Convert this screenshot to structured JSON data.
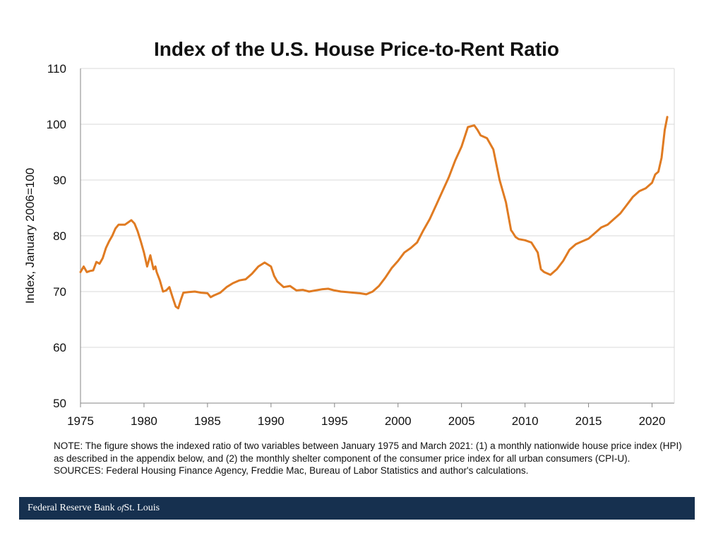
{
  "chart_data": {
    "type": "line",
    "title": "Index of the U.S. House Price-to-Rent Ratio",
    "ylabel": "Index, January 2006=100",
    "xlabel": "",
    "xlim": [
      1975,
      2021.75
    ],
    "ylim": [
      50,
      110
    ],
    "x_ticks": [
      "1975",
      "1980",
      "1985",
      "1990",
      "1995",
      "2000",
      "2005",
      "2010",
      "2015",
      "2020"
    ],
    "y_ticks": [
      "50",
      "60",
      "70",
      "80",
      "90",
      "100",
      "110"
    ],
    "grid": "horizontal",
    "line_color": "#e07b22",
    "series": [
      {
        "x": [
          1975.0,
          1975.25,
          1975.5,
          1975.75,
          1976.0,
          1976.25,
          1976.5,
          1976.75,
          1977.0,
          1977.25,
          1977.5,
          1977.75,
          1978.0,
          1978.5,
          1979.0,
          1979.25,
          1979.5,
          1979.75,
          1980.0,
          1980.25,
          1980.5,
          1980.75,
          1980.9,
          1981.0,
          1981.25,
          1981.5,
          1981.75,
          1982.0,
          1982.25,
          1982.5,
          1982.7,
          1982.9,
          1983.1,
          1983.5,
          1984.0,
          1984.5,
          1985.0,
          1985.25,
          1985.5,
          1986.0,
          1986.5,
          1987.0,
          1987.5,
          1988.0,
          1988.5,
          1989.0,
          1989.5,
          1990.0,
          1990.25,
          1990.5,
          1991.0,
          1991.5,
          1992.0,
          1992.5,
          1993.0,
          1993.5,
          1994.0,
          1994.5,
          1995.0,
          1995.5,
          1996.0,
          1996.5,
          1997.0,
          1997.5,
          1998.0,
          1998.5,
          1999.0,
          1999.5,
          2000.0,
          2000.5,
          2001.0,
          2001.5,
          2002.0,
          2002.5,
          2003.0,
          2003.5,
          2004.0,
          2004.5,
          2005.0,
          2005.5,
          2006.0,
          2006.25,
          2006.5,
          2007.0,
          2007.5,
          2008.0,
          2008.5,
          2008.9,
          2009.0,
          2009.25,
          2009.5,
          2010.0,
          2010.5,
          2011.0,
          2011.25,
          2011.5,
          2012.0,
          2012.5,
          2013.0,
          2013.5,
          2014.0,
          2014.5,
          2015.0,
          2015.5,
          2016.0,
          2016.5,
          2017.0,
          2017.5,
          2018.0,
          2018.5,
          2019.0,
          2019.5,
          2020.0,
          2020.25,
          2020.5,
          2020.75,
          2021.0,
          2021.2
        ],
        "values": [
          73.5,
          74.5,
          73.5,
          73.7,
          73.8,
          75.3,
          75.0,
          76.0,
          77.8,
          79.0,
          80.0,
          81.3,
          82.0,
          82.0,
          82.8,
          82.2,
          80.8,
          79.0,
          77.0,
          74.5,
          76.5,
          74.0,
          74.5,
          73.5,
          72.0,
          70.0,
          70.2,
          70.8,
          69.0,
          67.3,
          67.0,
          68.5,
          69.8,
          69.9,
          70.0,
          69.8,
          69.7,
          69.0,
          69.3,
          69.8,
          70.8,
          71.5,
          72.0,
          72.2,
          73.2,
          74.5,
          75.2,
          74.5,
          72.8,
          71.8,
          70.8,
          71.0,
          70.2,
          70.3,
          70.0,
          70.2,
          70.4,
          70.5,
          70.2,
          70.0,
          69.9,
          69.8,
          69.7,
          69.5,
          70.0,
          71.0,
          72.5,
          74.2,
          75.5,
          77.0,
          77.8,
          78.8,
          81.0,
          83.0,
          85.5,
          88.0,
          90.5,
          93.5,
          96.0,
          99.5,
          99.8,
          99.0,
          98.0,
          97.5,
          95.5,
          90.0,
          86.0,
          81.0,
          80.7,
          79.8,
          79.4,
          79.2,
          78.8,
          77.0,
          74.0,
          73.5,
          73.0,
          74.0,
          75.5,
          77.5,
          78.5,
          79.0,
          79.5,
          80.5,
          81.5,
          82.0,
          83.0,
          84.0,
          85.5,
          87.0,
          88.0,
          88.5,
          89.5,
          91.0,
          91.5,
          94.0,
          99.0,
          101.3
        ]
      }
    ]
  },
  "note": {
    "line1": "NOTE: The figure shows the indexed ratio of two variables between January 1975 and March 2021: (1) a monthly nationwide house price index (HPI) as described in the appendix below, and (2) the monthly shelter component of the consumer price index for all urban consumers (CPI-U).",
    "sources": "SOURCES: Federal Housing Finance Agency, Freddie Mac, Bureau of Labor Statistics and author's calculations."
  },
  "footer": {
    "part1": "Federal Reserve Bank ",
    "part2": "of",
    "part3": "St. Louis",
    "bg_color": "#16304f"
  }
}
